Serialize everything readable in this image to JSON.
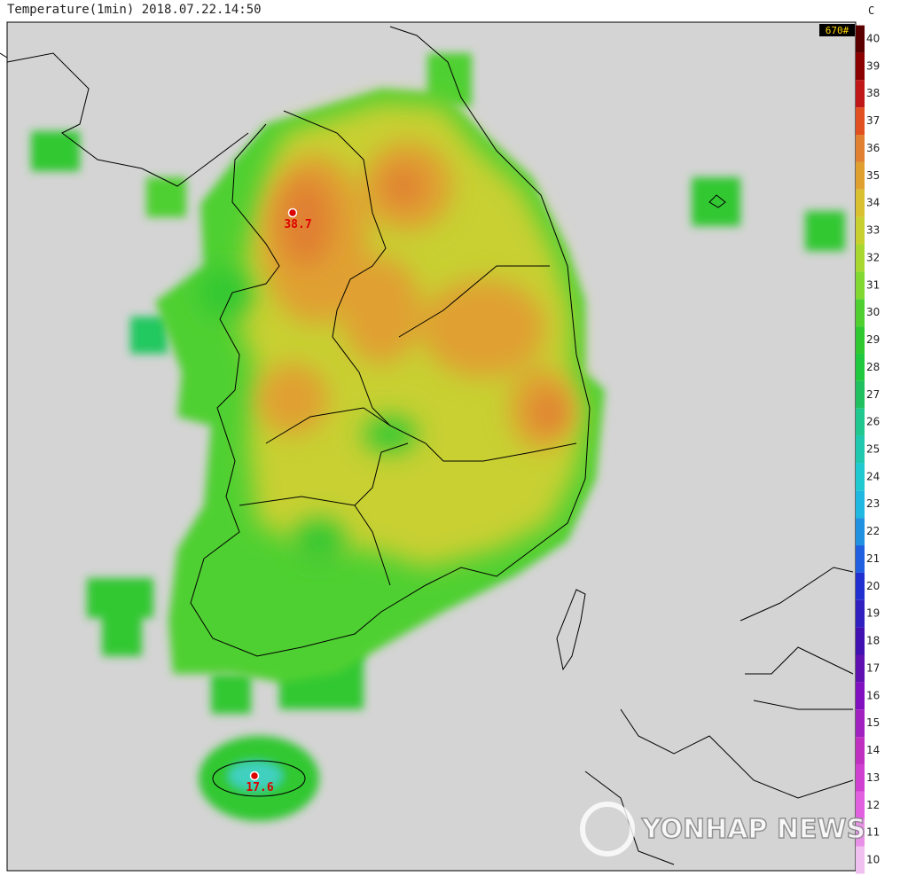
{
  "title": "Temperature(1min) 2018.07.22.14:50",
  "colorbar": {
    "unit": "C",
    "station_count": "670#",
    "ticks": [
      40,
      39,
      38,
      37,
      36,
      35,
      34,
      33,
      32,
      31,
      30,
      29,
      28,
      27,
      26,
      25,
      24,
      23,
      22,
      21,
      20,
      19,
      18,
      17,
      16,
      15,
      14,
      13,
      12,
      11,
      10
    ],
    "colors": [
      "#5a0000",
      "#8b0000",
      "#c01818",
      "#e05020",
      "#e08030",
      "#e0a030",
      "#d8c030",
      "#c8d030",
      "#a8d830",
      "#80d830",
      "#50d030",
      "#30c830",
      "#20c840",
      "#20c060",
      "#20c890",
      "#20c8b0",
      "#20c8d0",
      "#20b8e0",
      "#2090e0",
      "#2060e0",
      "#2030d0",
      "#3020c0",
      "#4010b0",
      "#6010b0",
      "#8010c0",
      "#a020c0",
      "#c030c0",
      "#d040d0",
      "#e060e0",
      "#e890e8",
      "#f0c0f0"
    ]
  },
  "stations": [
    {
      "value": 38.7
    },
    {
      "value": 17.6
    }
  ],
  "watermark": "YONHAP NEWS"
}
